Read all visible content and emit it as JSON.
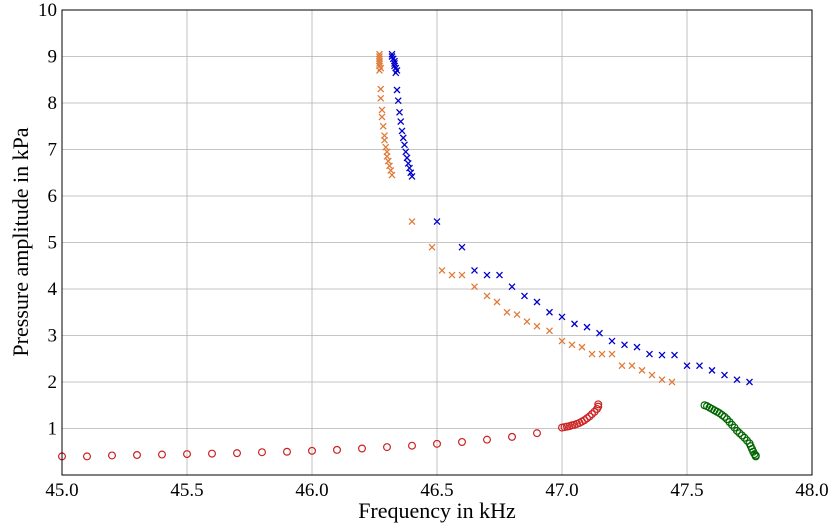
{
  "chart_data": {
    "type": "scatter",
    "title": "",
    "xlabel": "Frequency in kHz",
    "ylabel": "Pressure amplitude in kPa",
    "xlim": [
      45.0,
      48.0
    ],
    "ylim": [
      0,
      10
    ],
    "xticks": [
      "45.0",
      "45.5",
      "46.0",
      "46.5",
      "47.0",
      "47.5",
      "48.0"
    ],
    "yticks": [
      "1",
      "2",
      "3",
      "4",
      "5",
      "6",
      "7",
      "8",
      "9",
      "10"
    ],
    "grid": true,
    "series": [
      {
        "marker": "x",
        "color": "#0000cc",
        "points": [
          [
            46.32,
            9.05
          ],
          [
            46.32,
            9.0
          ],
          [
            46.325,
            8.95
          ],
          [
            46.33,
            8.9
          ],
          [
            46.33,
            8.85
          ],
          [
            46.33,
            8.8
          ],
          [
            46.335,
            8.75
          ],
          [
            46.34,
            8.7
          ],
          [
            46.335,
            8.65
          ],
          [
            46.34,
            8.28
          ],
          [
            46.345,
            8.05
          ],
          [
            46.35,
            7.8
          ],
          [
            46.355,
            7.6
          ],
          [
            46.36,
            7.4
          ],
          [
            46.365,
            7.25
          ],
          [
            46.37,
            7.1
          ],
          [
            46.375,
            6.95
          ],
          [
            46.38,
            6.82
          ],
          [
            46.385,
            6.7
          ],
          [
            46.39,
            6.6
          ],
          [
            46.395,
            6.5
          ],
          [
            46.4,
            6.42
          ],
          [
            46.5,
            5.45
          ],
          [
            46.6,
            4.9
          ],
          [
            46.65,
            4.4
          ],
          [
            46.7,
            4.3
          ],
          [
            46.75,
            4.3
          ],
          [
            46.8,
            4.05
          ],
          [
            46.85,
            3.85
          ],
          [
            46.9,
            3.72
          ],
          [
            46.95,
            3.5
          ],
          [
            47.0,
            3.4
          ],
          [
            47.05,
            3.25
          ],
          [
            47.1,
            3.18
          ],
          [
            47.15,
            3.05
          ],
          [
            47.2,
            2.88
          ],
          [
            47.25,
            2.8
          ],
          [
            47.3,
            2.75
          ],
          [
            47.35,
            2.6
          ],
          [
            47.4,
            2.58
          ],
          [
            47.45,
            2.58
          ],
          [
            47.5,
            2.35
          ],
          [
            47.55,
            2.35
          ],
          [
            47.6,
            2.25
          ],
          [
            47.65,
            2.15
          ],
          [
            47.7,
            2.05
          ],
          [
            47.75,
            2.0
          ]
        ]
      },
      {
        "marker": "x",
        "color": "#e07b39",
        "points": [
          [
            46.27,
            9.05
          ],
          [
            46.27,
            9.0
          ],
          [
            46.27,
            8.95
          ],
          [
            46.27,
            8.9
          ],
          [
            46.27,
            8.85
          ],
          [
            46.27,
            8.8
          ],
          [
            46.275,
            8.75
          ],
          [
            46.27,
            8.7
          ],
          [
            46.275,
            8.3
          ],
          [
            46.275,
            8.1
          ],
          [
            46.28,
            7.85
          ],
          [
            46.28,
            7.7
          ],
          [
            46.285,
            7.5
          ],
          [
            46.29,
            7.3
          ],
          [
            46.29,
            7.2
          ],
          [
            46.295,
            7.05
          ],
          [
            46.3,
            6.95
          ],
          [
            46.3,
            6.85
          ],
          [
            46.305,
            6.75
          ],
          [
            46.31,
            6.65
          ],
          [
            46.315,
            6.55
          ],
          [
            46.32,
            6.45
          ],
          [
            46.4,
            5.45
          ],
          [
            46.48,
            4.9
          ],
          [
            46.52,
            4.4
          ],
          [
            46.56,
            4.3
          ],
          [
            46.6,
            4.3
          ],
          [
            46.65,
            4.05
          ],
          [
            46.7,
            3.85
          ],
          [
            46.74,
            3.72
          ],
          [
            46.78,
            3.5
          ],
          [
            46.82,
            3.45
          ],
          [
            46.86,
            3.3
          ],
          [
            46.9,
            3.2
          ],
          [
            46.95,
            3.1
          ],
          [
            47.0,
            2.88
          ],
          [
            47.04,
            2.8
          ],
          [
            47.08,
            2.75
          ],
          [
            47.12,
            2.6
          ],
          [
            47.16,
            2.6
          ],
          [
            47.2,
            2.6
          ],
          [
            47.24,
            2.35
          ],
          [
            47.28,
            2.35
          ],
          [
            47.32,
            2.25
          ],
          [
            47.36,
            2.15
          ],
          [
            47.4,
            2.05
          ],
          [
            47.44,
            2.0
          ]
        ]
      },
      {
        "marker": "o",
        "color": "#cc2222",
        "points": [
          [
            45.0,
            0.4
          ],
          [
            45.1,
            0.4
          ],
          [
            45.2,
            0.42
          ],
          [
            45.3,
            0.43
          ],
          [
            45.4,
            0.44
          ],
          [
            45.5,
            0.45
          ],
          [
            45.6,
            0.46
          ],
          [
            45.7,
            0.47
          ],
          [
            45.8,
            0.49
          ],
          [
            45.9,
            0.5
          ],
          [
            46.0,
            0.52
          ],
          [
            46.1,
            0.54
          ],
          [
            46.2,
            0.57
          ],
          [
            46.3,
            0.6
          ],
          [
            46.4,
            0.63
          ],
          [
            46.5,
            0.67
          ],
          [
            46.6,
            0.71
          ],
          [
            46.7,
            0.76
          ],
          [
            46.8,
            0.82
          ],
          [
            46.9,
            0.9
          ],
          [
            47.0,
            1.02
          ],
          [
            47.01,
            1.03
          ],
          [
            47.02,
            1.04
          ],
          [
            47.03,
            1.05
          ],
          [
            47.04,
            1.07
          ],
          [
            47.05,
            1.08
          ],
          [
            47.06,
            1.1
          ],
          [
            47.07,
            1.12
          ],
          [
            47.08,
            1.15
          ],
          [
            47.09,
            1.18
          ],
          [
            47.1,
            1.22
          ],
          [
            47.11,
            1.26
          ],
          [
            47.12,
            1.31
          ],
          [
            47.13,
            1.36
          ],
          [
            47.14,
            1.42
          ],
          [
            47.145,
            1.47
          ],
          [
            47.145,
            1.52
          ]
        ]
      },
      {
        "marker": "o",
        "color": "#006600",
        "points": [
          [
            47.57,
            1.5
          ],
          [
            47.58,
            1.48
          ],
          [
            47.59,
            1.45
          ],
          [
            47.6,
            1.42
          ],
          [
            47.61,
            1.39
          ],
          [
            47.62,
            1.36
          ],
          [
            47.63,
            1.33
          ],
          [
            47.64,
            1.29
          ],
          [
            47.65,
            1.25
          ],
          [
            47.66,
            1.2
          ],
          [
            47.67,
            1.14
          ],
          [
            47.68,
            1.08
          ],
          [
            47.69,
            1.02
          ],
          [
            47.7,
            0.95
          ],
          [
            47.71,
            0.9
          ],
          [
            47.72,
            0.85
          ],
          [
            47.73,
            0.8
          ],
          [
            47.74,
            0.74
          ],
          [
            47.75,
            0.68
          ],
          [
            47.755,
            0.62
          ],
          [
            47.76,
            0.56
          ],
          [
            47.765,
            0.5
          ],
          [
            47.77,
            0.45
          ],
          [
            47.775,
            0.42
          ],
          [
            47.775,
            0.4
          ]
        ]
      }
    ]
  }
}
